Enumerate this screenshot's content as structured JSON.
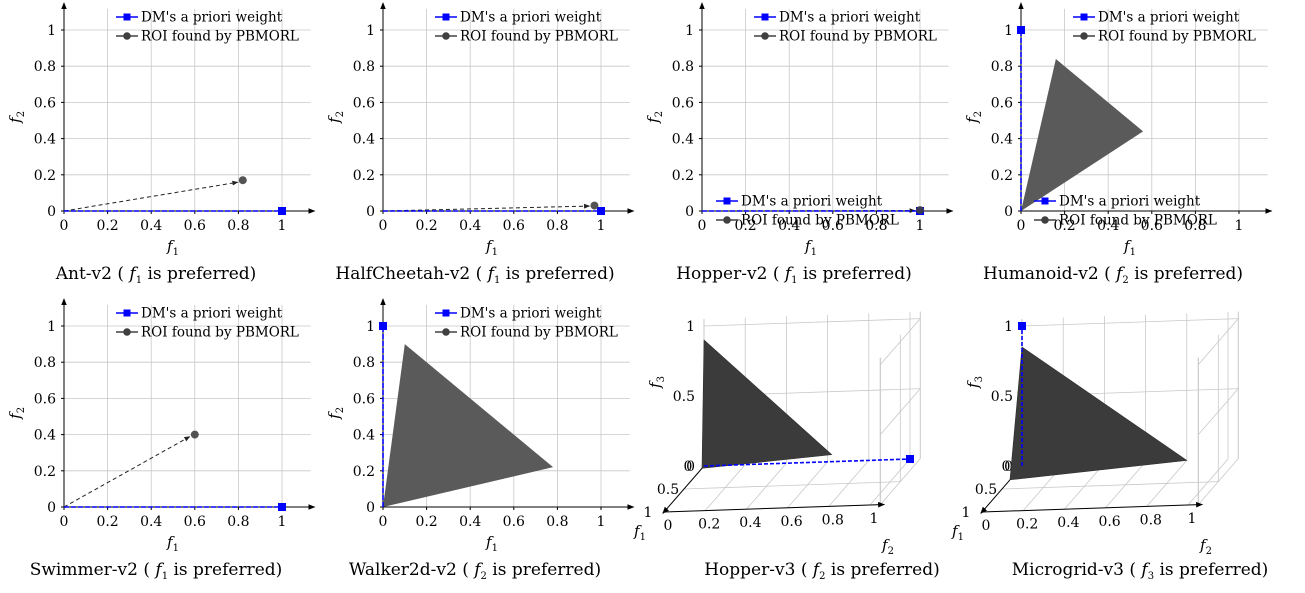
{
  "common": {
    "legend": {
      "dm": "DM's a priori weight",
      "roi": "ROI found by PBMORL"
    },
    "colors": {
      "dm": "#0000ff",
      "roi_point": "#404040",
      "roi_fill": "#5a5a5a",
      "roi_fill_3d": "#3b3b3b",
      "grid": "#c8c8c8",
      "axis": "#000000"
    }
  },
  "chart_data": [
    {
      "type": "scatter",
      "dims": 2,
      "caption": {
        "pre": "Ant-v2 ( ",
        "var": "f",
        "sub": "1",
        "post": " is preferred)"
      },
      "xlabel": {
        "var": "f",
        "sub": "1"
      },
      "ylabel": {
        "var": "f",
        "sub": "2"
      },
      "xlim": [
        0,
        1.15
      ],
      "ylim": [
        0,
        1.15
      ],
      "xticks": [
        "0",
        "0.2",
        "0.4",
        "0.6",
        "0.8",
        "1"
      ],
      "yticks": [
        "0",
        "0.2",
        "0.4",
        "0.6",
        "0.8",
        "1"
      ],
      "grid": true,
      "legend_position": "top-right",
      "dm_weight": [
        1,
        0
      ],
      "roi": {
        "kind": "point",
        "point": [
          0.82,
          0.17
        ]
      }
    },
    {
      "type": "scatter",
      "dims": 2,
      "caption": {
        "pre": "HalfCheetah-v2 ( ",
        "var": "f",
        "sub": "1",
        "post": " is preferred)"
      },
      "xlabel": {
        "var": "f",
        "sub": "1"
      },
      "ylabel": {
        "var": "f",
        "sub": "2"
      },
      "xlim": [
        0,
        1.15
      ],
      "ylim": [
        0,
        1.15
      ],
      "xticks": [
        "0",
        "0.2",
        "0.4",
        "0.6",
        "0.8",
        "1"
      ],
      "yticks": [
        "0",
        "0.2",
        "0.4",
        "0.6",
        "0.8",
        "1"
      ],
      "grid": true,
      "legend_position": "top-right",
      "dm_weight": [
        1,
        0
      ],
      "roi": {
        "kind": "point",
        "point": [
          0.97,
          0.03
        ]
      }
    },
    {
      "type": "scatter",
      "dims": 2,
      "caption": {
        "pre": "Hopper-v2 ( ",
        "var": "f",
        "sub": "1",
        "post": " is preferred)"
      },
      "xlabel": {
        "var": "f",
        "sub": "1"
      },
      "ylabel": {
        "var": "f",
        "sub": "2"
      },
      "xlim": [
        0,
        1.15
      ],
      "ylim": [
        0,
        1.15
      ],
      "xticks": [
        "0",
        "0.2",
        "0.4",
        "0.6",
        "0.8",
        "1"
      ],
      "yticks": [
        "0",
        "0.2",
        "0.4",
        "0.6",
        "0.8",
        "1"
      ],
      "grid": true,
      "legend_position": "top-right",
      "dm_weight": [
        1,
        0
      ],
      "roi": {
        "kind": "point",
        "point": [
          1.0,
          0.005
        ]
      }
    },
    {
      "type": "scatter",
      "dims": 2,
      "caption": {
        "pre": "Humanoid-v2 ( ",
        "var": "f",
        "sub": "2",
        "post": " is preferred)"
      },
      "xlabel": {
        "var": "f",
        "sub": "1"
      },
      "ylabel": {
        "var": "f",
        "sub": "2"
      },
      "xlim": [
        0,
        1.15
      ],
      "ylim": [
        0,
        1.15
      ],
      "xticks": [
        "0",
        "0.2",
        "0.4",
        "0.6",
        "0.8",
        "1"
      ],
      "yticks": [
        "0",
        "0.2",
        "0.4",
        "0.6",
        "0.8",
        "1"
      ],
      "grid": true,
      "legend_position": "top-right",
      "dm_weight": [
        0,
        1
      ],
      "roi": {
        "kind": "polygon",
        "polygon": [
          [
            0,
            0
          ],
          [
            0.16,
            0.84
          ],
          [
            0.56,
            0.44
          ]
        ]
      }
    },
    {
      "type": "scatter",
      "dims": 2,
      "caption": {
        "pre": "Swimmer-v2 ( ",
        "var": "f",
        "sub": "1",
        "post": " is preferred)"
      },
      "xlabel": {
        "var": "f",
        "sub": "1"
      },
      "ylabel": {
        "var": "f",
        "sub": "2"
      },
      "xlim": [
        0,
        1.15
      ],
      "ylim": [
        0,
        1.15
      ],
      "xticks": [
        "0",
        "0.2",
        "0.4",
        "0.6",
        "0.8",
        "1"
      ],
      "yticks": [
        "0",
        "0.2",
        "0.4",
        "0.6",
        "0.8",
        "1"
      ],
      "grid": true,
      "legend_position": "top-right",
      "dm_weight": [
        1,
        0
      ],
      "roi": {
        "kind": "point",
        "point": [
          0.6,
          0.4
        ]
      }
    },
    {
      "type": "scatter",
      "dims": 2,
      "caption": {
        "pre": "Walker2d-v2 ( ",
        "var": "f",
        "sub": "2",
        "post": " is preferred)"
      },
      "xlabel": {
        "var": "f",
        "sub": "1"
      },
      "ylabel": {
        "var": "f",
        "sub": "2"
      },
      "xlim": [
        0,
        1.15
      ],
      "ylim": [
        0,
        1.15
      ],
      "xticks": [
        "0",
        "0.2",
        "0.4",
        "0.6",
        "0.8",
        "1"
      ],
      "yticks": [
        "0",
        "0.2",
        "0.4",
        "0.6",
        "0.8",
        "1"
      ],
      "grid": true,
      "legend_position": "top-right",
      "dm_weight": [
        0,
        1
      ],
      "roi": {
        "kind": "polygon",
        "polygon": [
          [
            0,
            0
          ],
          [
            0.1,
            0.9
          ],
          [
            0.78,
            0.22
          ]
        ]
      }
    },
    {
      "type": "scatter",
      "dims": 3,
      "caption": {
        "pre": "Hopper-v3 ( ",
        "var": "f",
        "sub": "2",
        "post": " is preferred)"
      },
      "xlabel": {
        "var": "f",
        "sub": "1"
      },
      "ylabel": {
        "var": "f",
        "sub": "2"
      },
      "zlabel": {
        "var": "f",
        "sub": "3"
      },
      "xticks": [
        "0",
        "0.5",
        "1"
      ],
      "yticks": [
        "0",
        "0.2",
        "0.4",
        "0.6",
        "0.8",
        "1"
      ],
      "zticks": [
        "0",
        "0.5",
        "1"
      ],
      "grid": true,
      "legend_position": "top",
      "dm_weight": [
        0,
        1,
        0
      ],
      "roi": {
        "kind": "polygon",
        "polygon": [
          [
            0,
            0,
            0.9
          ],
          [
            0,
            0.62,
            0.05
          ],
          [
            0.05,
            0,
            0
          ]
        ]
      }
    },
    {
      "type": "scatter",
      "dims": 3,
      "caption": {
        "pre": "Microgrid-v3 ( ",
        "var": "f",
        "sub": "3",
        "post": " is preferred)"
      },
      "xlabel": {
        "var": "f",
        "sub": "1"
      },
      "ylabel": {
        "var": "f",
        "sub": "2"
      },
      "zlabel": {
        "var": "f",
        "sub": "3"
      },
      "xticks": [
        "0",
        "0.5",
        "1"
      ],
      "yticks": [
        "0",
        "0.2",
        "0.4",
        "0.6",
        "0.8",
        "1"
      ],
      "zticks": [
        "0",
        "0.5",
        "1"
      ],
      "grid": true,
      "legend_position": "top",
      "dm_weight": [
        0,
        0,
        1
      ],
      "roi": {
        "kind": "polygon",
        "polygon": [
          [
            0.3,
            0,
            0
          ],
          [
            0,
            0,
            0.85
          ],
          [
            0,
            0.8,
            0
          ]
        ]
      }
    }
  ]
}
